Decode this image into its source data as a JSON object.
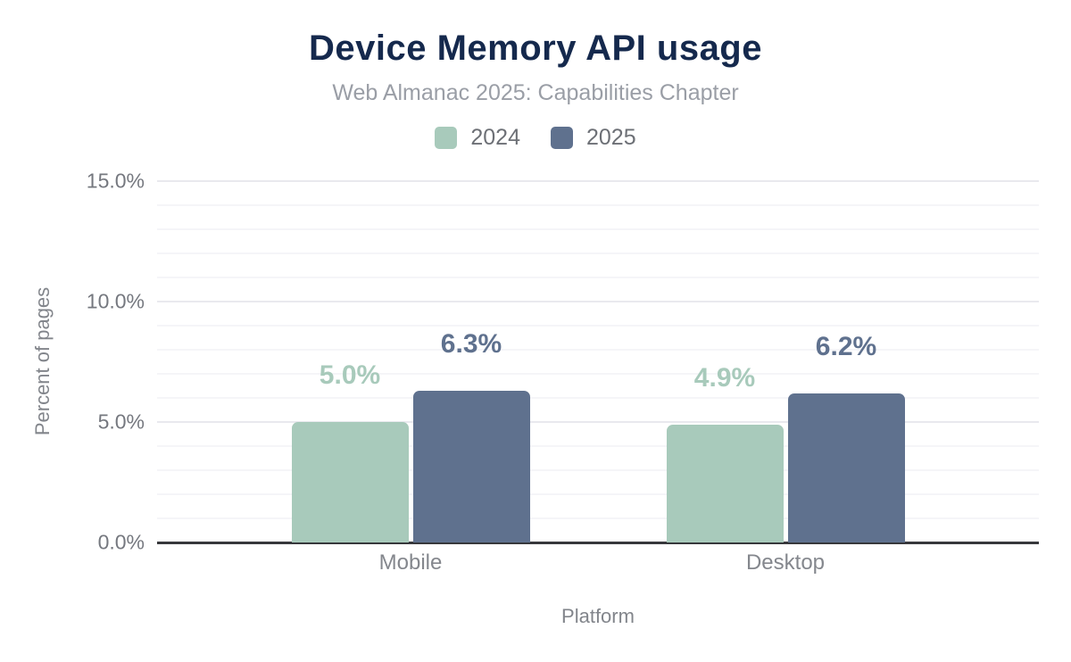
{
  "title": "Device Memory API usage",
  "subtitle": "Web Almanac 2025: Capabilities Chapter",
  "legend": {
    "items": [
      {
        "label": "2024",
        "color": "#a8cabb"
      },
      {
        "label": "2025",
        "color": "#5f718e"
      }
    ]
  },
  "chart_data": {
    "type": "bar",
    "title": "Device Memory API usage",
    "subtitle": "Web Almanac 2025: Capabilities Chapter",
    "categories": [
      "Mobile",
      "Desktop"
    ],
    "series": [
      {
        "name": "2024",
        "color": "#a8cabb",
        "values": [
          5.0,
          4.9
        ],
        "labels": [
          "5.0%",
          "4.9%"
        ]
      },
      {
        "name": "2025",
        "color": "#5f718e",
        "values": [
          6.3,
          6.2
        ],
        "labels": [
          "6.3%",
          "6.2%"
        ]
      }
    ],
    "xlabel": "Platform",
    "ylabel": "Percent of pages",
    "ylim": [
      0,
      15
    ],
    "yticks": [
      {
        "value": 0,
        "label": "0.0%"
      },
      {
        "value": 5,
        "label": "5.0%"
      },
      {
        "value": 10,
        "label": "10.0%"
      },
      {
        "value": 15,
        "label": "15.0%"
      }
    ],
    "grid": "horizontal; minor every 1%, major every 5%",
    "legend_position": "top",
    "baseline_color": "#37383c",
    "title_color": "#15294d",
    "subtitle_color": "#9a9ea6"
  }
}
